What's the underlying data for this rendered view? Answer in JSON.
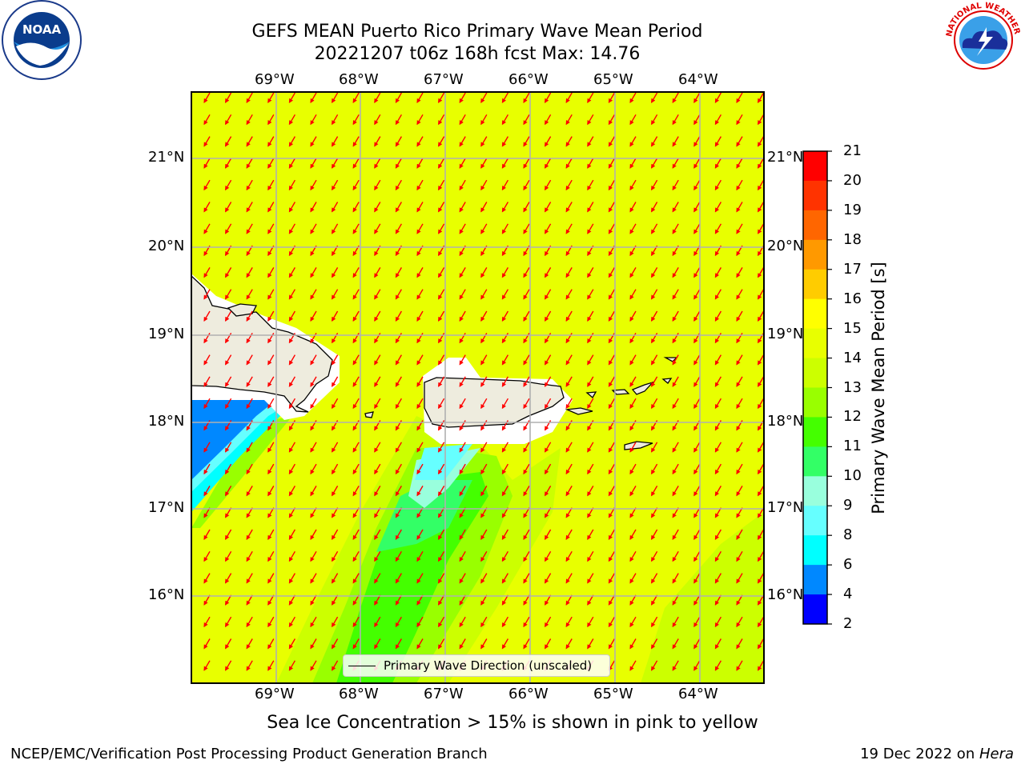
{
  "title": {
    "line1": "GEFS MEAN Puerto Rico Primary Wave Mean Period",
    "line2": "20221207 t06z 168h fcst   Max: 14.76"
  },
  "logos": {
    "noaa_text": "NOAA",
    "nws_text": "NATIONAL WEATHER SERVICE"
  },
  "map": {
    "lon_ticks": [
      "69°W",
      "68°W",
      "67°W",
      "66°W",
      "65°W",
      "64°W"
    ],
    "lat_ticks": [
      "21°N",
      "20°N",
      "19°N",
      "18°N",
      "17°N",
      "16°N"
    ],
    "background_color": "#e8ff00",
    "arrow_color": "#ff0000",
    "land_color": "#eeecde",
    "legend_label": "Primary Wave Direction (unscaled)"
  },
  "colorbar": {
    "label": "Primary Wave Mean Period [s]",
    "ticks": [
      "21",
      "20",
      "19",
      "18",
      "17",
      "16",
      "15",
      "14",
      "13",
      "12",
      "11",
      "10",
      "9",
      "8",
      "6",
      "4",
      "2"
    ],
    "colors": [
      "#ff0000",
      "#ff3300",
      "#ff6600",
      "#ff9900",
      "#ffcc00",
      "#ffff00",
      "#e8ff00",
      "#ccff00",
      "#99ff00",
      "#44ff00",
      "#33ff66",
      "#99ffdd",
      "#66ffff",
      "#00ffff",
      "#0088ff",
      "#0000ff"
    ]
  },
  "subtitle": "Sea Ice Concentration > 15% is shown in pink to yellow",
  "footer": {
    "left": "NCEP/EMC/Verification Post Processing Product Generation Branch",
    "right_date": "19 Dec 2022 on ",
    "right_host": "Hera"
  }
}
